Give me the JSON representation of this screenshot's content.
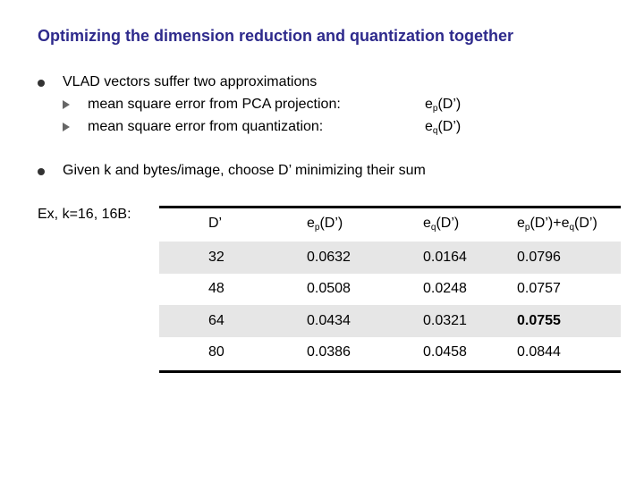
{
  "title": "Optimizing the dimension reduction and quantization together",
  "bullets": [
    {
      "text": "VLAD vectors suffer two approximations",
      "subs": [
        {
          "text": "mean square error from PCA projection:",
          "val_base": "e",
          "val_sub": "p",
          "val_tail": "(D’)"
        },
        {
          "text": "mean square error from quantization:",
          "val_base": "e",
          "val_sub": "q",
          "val_tail": "(D’)"
        }
      ]
    },
    {
      "text": "Given k and bytes/image, choose D’ minimizing their sum"
    }
  ],
  "example_label": "Ex, k=16, 16B:",
  "table": {
    "headers": {
      "d": "D’",
      "ep_base": "e",
      "ep_sub": "p",
      "ep_tail": "(D’)",
      "eq_base": "e",
      "eq_sub": "q",
      "eq_tail": "(D’)",
      "sum_a_base": "e",
      "sum_a_sub": "p",
      "sum_mid": "(D’)+e",
      "sum_b_sub": "q",
      "sum_tail": "(D’)"
    },
    "rows": [
      {
        "d": "32",
        "ep": "0.0632",
        "eq": "0.0164",
        "sum": "0.0796"
      },
      {
        "d": "48",
        "ep": "0.0508",
        "eq": "0.0248",
        "sum": "0.0757"
      },
      {
        "d": "64",
        "ep": "0.0434",
        "eq": "0.0321",
        "sum": "0.0755"
      },
      {
        "d": "80",
        "ep": "0.0386",
        "eq": "0.0458",
        "sum": "0.0844"
      }
    ]
  }
}
